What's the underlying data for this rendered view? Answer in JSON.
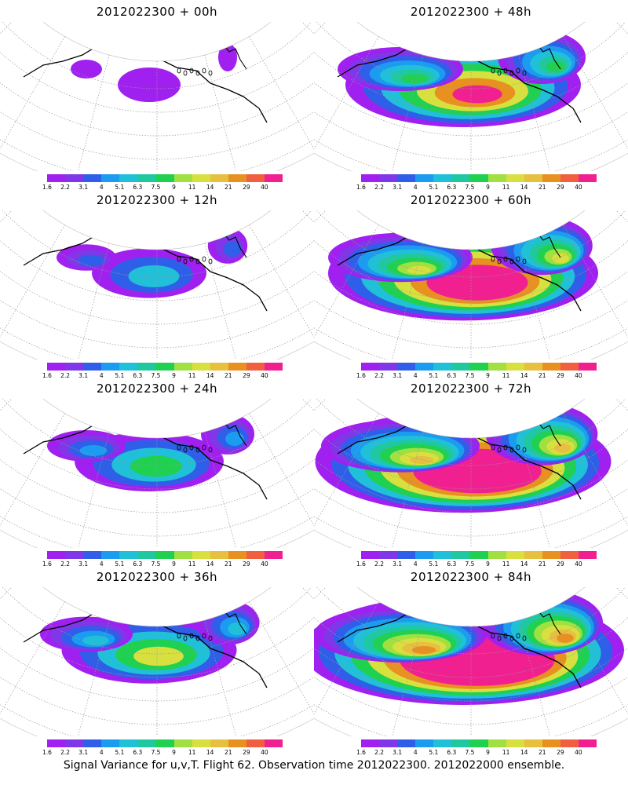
{
  "panels": [
    {
      "title": "2012022300  + 00h",
      "intensity": 0
    },
    {
      "title": "2012022300  + 48h",
      "intensity": 2
    },
    {
      "title": "2012022300  + 12h",
      "intensity": 0.6
    },
    {
      "title": "2012022300  + 60h",
      "intensity": 2.4
    },
    {
      "title": "2012022300  + 24h",
      "intensity": 1
    },
    {
      "title": "2012022300  + 72h",
      "intensity": 2.7
    },
    {
      "title": "2012022300  + 36h",
      "intensity": 1.3
    },
    {
      "title": "2012022300  + 84h",
      "intensity": 3
    }
  ],
  "colorbar": {
    "labels": [
      "1.6",
      "2.2",
      "3.1",
      "4",
      "5.1",
      "6.3",
      "7.5",
      "9",
      "11",
      "14",
      "21",
      "29",
      "40"
    ],
    "colors": [
      "#a020f0",
      "#7f37e8",
      "#2f5fe8",
      "#1c9cf0",
      "#20c0d8",
      "#20c8a0",
      "#20d050",
      "#a0e040",
      "#d8e040",
      "#e8c040",
      "#e89020",
      "#f06040",
      "#f02090"
    ]
  },
  "footer": "Signal Variance for u,v,T. Flight 62. Observation time 2012022300. 2012022000 ensemble."
}
